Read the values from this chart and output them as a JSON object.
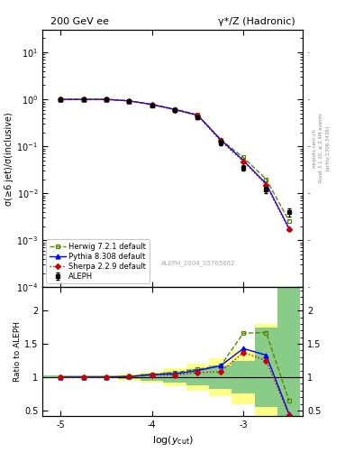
{
  "title_left": "200 GeV ee",
  "title_right": "γ*/Z (Hadronic)",
  "ylabel_main": "σ(≥6 jet)/σ(inclusive)",
  "ylabel_ratio": "Ratio to ALEPH",
  "xlabel": "log(y_{cut})",
  "right_label": "Rivet 3.1.10, ≥ 2.4M events",
  "right_label2": "[arXiv:1306.3436]",
  "watermark": "ALEPH_2004_S5765862",
  "mcplots": "mcplots.cern.ch",
  "x_data": [
    -5.0,
    -4.75,
    -4.5,
    -4.25,
    -4.0,
    -3.75,
    -3.5,
    -3.25,
    -3.0,
    -2.75,
    -2.5
  ],
  "aleph_y": [
    1.0,
    1.0,
    1.0,
    0.92,
    0.75,
    0.58,
    0.42,
    0.12,
    0.035,
    0.012,
    0.004
  ],
  "aleph_yerr": [
    0.02,
    0.02,
    0.02,
    0.03,
    0.04,
    0.04,
    0.04,
    0.015,
    0.005,
    0.002,
    0.0008
  ],
  "herwig_y": [
    1.0,
    1.0,
    1.0,
    0.93,
    0.78,
    0.62,
    0.47,
    0.14,
    0.058,
    0.02,
    0.0026
  ],
  "pythia_y": [
    1.0,
    1.0,
    1.0,
    0.93,
    0.78,
    0.61,
    0.46,
    0.14,
    0.05,
    0.016,
    0.0018
  ],
  "sherpa_y": [
    1.0,
    1.0,
    1.0,
    0.93,
    0.77,
    0.6,
    0.45,
    0.13,
    0.048,
    0.015,
    0.0017
  ],
  "herwig_ratio": [
    1.0,
    1.0,
    1.0,
    1.01,
    1.04,
    1.07,
    1.12,
    1.17,
    1.66,
    1.67,
    0.65
  ],
  "pythia_ratio": [
    1.0,
    1.0,
    1.0,
    1.01,
    1.04,
    1.05,
    1.1,
    1.17,
    1.43,
    1.33,
    0.45
  ],
  "sherpa_ratio": [
    1.0,
    1.0,
    1.0,
    1.01,
    1.03,
    1.03,
    1.07,
    1.08,
    1.37,
    1.25,
    0.43
  ],
  "bin_edges": [
    -5.2,
    -4.875,
    -4.625,
    -4.375,
    -4.125,
    -3.875,
    -3.625,
    -3.375,
    -3.125,
    -2.875,
    -2.625,
    -2.375
  ],
  "band_yellow_lo": [
    0.97,
    0.97,
    0.97,
    0.95,
    0.92,
    0.87,
    0.8,
    0.72,
    0.6,
    0.42,
    0.3
  ],
  "band_yellow_hi": [
    1.03,
    1.03,
    1.03,
    1.05,
    1.08,
    1.13,
    1.2,
    1.28,
    1.4,
    1.8,
    2.8
  ],
  "band_green_lo": [
    0.98,
    0.98,
    0.98,
    0.97,
    0.95,
    0.92,
    0.88,
    0.83,
    0.75,
    0.55,
    0.42
  ],
  "band_green_hi": [
    1.02,
    1.02,
    1.02,
    1.03,
    1.05,
    1.08,
    1.12,
    1.17,
    1.25,
    1.75,
    2.5
  ],
  "aleph_color": "#000000",
  "herwig_color": "#558800",
  "pythia_color": "#0000ff",
  "sherpa_color": "#cc0000",
  "xlim": [
    -5.2,
    -2.35
  ],
  "ylim_main": [
    0.0001,
    30.0
  ],
  "ylim_ratio": [
    0.42,
    2.35
  ],
  "yticks_ratio": [
    0.5,
    1.0,
    1.5,
    2.0
  ]
}
